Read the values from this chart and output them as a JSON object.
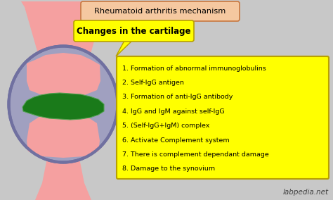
{
  "bg_color": "#c8c8c8",
  "title_text": "Rheumatoid arthritis mechanism",
  "title_bg": "#f5c8a0",
  "title_border": "#c87840",
  "subtitle_text": "Changes in the cartilage",
  "subtitle_bg": "#ffff00",
  "subtitle_border": "#b8a000",
  "list_items": [
    "1. Formation of abnormal immunoglobulins",
    "2. Self-IgG antigen",
    "3. Formation of anti-IgG antibody",
    "4. IgG and IgM against self-IgG",
    "5. (Self-IgG+IgM) complex",
    "6. Activate Complement system",
    "7. There is complement dependant damage",
    "8. Damage to the synovium"
  ],
  "list_bg": "#ffff00",
  "list_border": "#b8a000",
  "watermark": "labpedia.net",
  "joint_pink": "#f5a0a0",
  "joint_gray_outer": "#9898b8",
  "joint_gray_inner": "#a0a0c0",
  "joint_dark_gray": "#7070a0",
  "joint_green": "#1a7a1a",
  "joint_green_edge": "#50a050"
}
